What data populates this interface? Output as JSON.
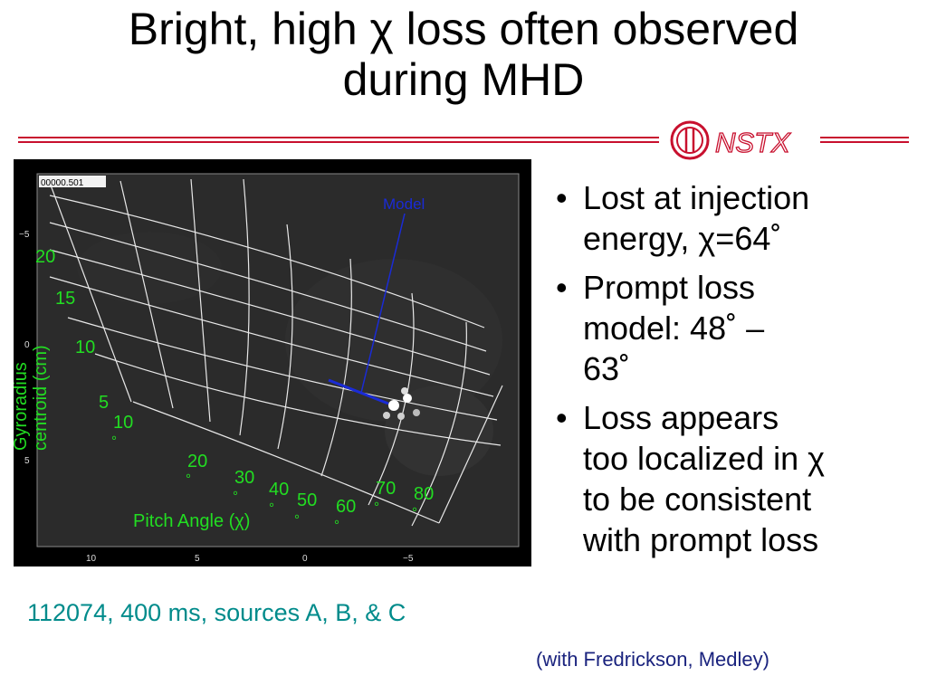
{
  "slide": {
    "title_lines": [
      "Bright, high χ loss often observed",
      "during MHD"
    ],
    "logo_text": "NSTX",
    "caption": "112074, 400 ms, sources A, B, & C",
    "credit": "(with Fredrickson, Medley)",
    "bullets": [
      {
        "lines": [
          "Lost at injection",
          "energy, χ=64˚"
        ]
      },
      {
        "lines": [
          "Prompt loss",
          "model: 48˚  –",
          "63˚"
        ]
      },
      {
        "lines": [
          "Loss appears",
          "too localized in χ",
          "to be consistent",
          "with prompt loss"
        ]
      }
    ]
  },
  "figure": {
    "frame_label": "00000.501",
    "model_label": "Model",
    "pitch_axis_label": "Pitch Angle (χ)",
    "gyro_axis_label": [
      "Gyroradius",
      "centroid (cm)"
    ],
    "gyro_labels": [
      "20",
      "15",
      "10",
      "5"
    ],
    "pitch_labels": [
      "10",
      "20",
      "30",
      "40",
      "50",
      "60",
      "70",
      "80"
    ],
    "degree_mark": "°",
    "x_ticks": [
      "10",
      "5",
      "0",
      "−5"
    ],
    "y_ticks": [
      "−5",
      "0",
      "5"
    ],
    "colors": {
      "label_green": "#22dd22",
      "model_blue": "#1a2bd6",
      "grid": "#e8e8e8",
      "background": "#2b2b2b"
    }
  }
}
